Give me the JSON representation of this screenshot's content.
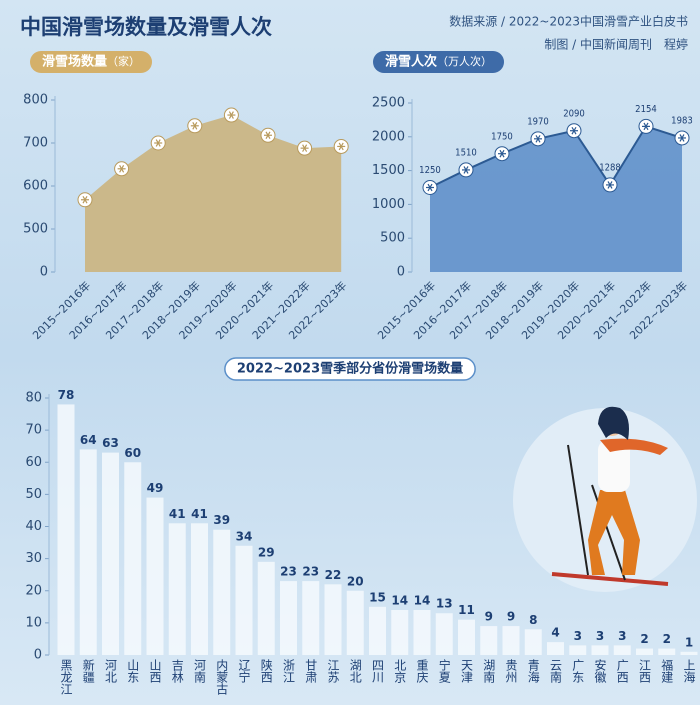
{
  "header": {
    "title": "中国滑雪场数量及滑雪人次",
    "source": "数据来源 / 2022~2023中国滑雪产业白皮书",
    "credit": "制图 / 中国新闻周刊　程婷"
  },
  "chart_data": [
    {
      "type": "area",
      "title": "滑雪场数量",
      "unit": "（家）",
      "categories": [
        "2015~2016年",
        "2016~2017年",
        "2017~2018年",
        "2018~2019年",
        "2019~2020年",
        "2020~2021年",
        "2021~2022年",
        "2022~2023年"
      ],
      "values": [
        568,
        640,
        700,
        740,
        765,
        718,
        688,
        692
      ],
      "color": "#cbb47e",
      "ylim": [
        0,
        800
      ],
      "yticks": [
        0,
        500,
        600,
        700,
        800
      ],
      "y_break": true,
      "grid": false
    },
    {
      "type": "line",
      "title": "滑雪人次",
      "unit": "（万人次）",
      "categories": [
        "2015~2016年",
        "2016~2017年",
        "2017~2018年",
        "2018~2019年",
        "2019~2020年",
        "2020~2021年",
        "2021~2022年",
        "2022~2023年"
      ],
      "values": [
        1250,
        1510,
        1750,
        1970,
        2090,
        1288,
        2154,
        1983
      ],
      "color": "#2c5a93",
      "ylim": [
        0,
        2500
      ],
      "yticks": [
        0,
        500,
        1000,
        1500,
        2000,
        2500
      ],
      "grid": false
    },
    {
      "type": "bar",
      "title": "2022~2023雪季部分省份滑雪场数量",
      "categories": [
        "黑龙江",
        "新疆",
        "河北",
        "山东",
        "山西",
        "吉林",
        "河南",
        "内蒙古",
        "辽宁",
        "陕西",
        "浙江",
        "甘肃",
        "江苏",
        "湖北",
        "四川",
        "北京",
        "重庆",
        "宁夏",
        "天津",
        "湖南",
        "贵州",
        "青海",
        "云南",
        "广东",
        "安徽",
        "广西",
        "江西",
        "福建",
        "上海"
      ],
      "values": [
        78,
        64,
        63,
        60,
        49,
        41,
        41,
        39,
        34,
        29,
        23,
        23,
        22,
        20,
        15,
        14,
        14,
        13,
        11,
        9,
        9,
        8,
        4,
        3,
        3,
        3,
        2,
        2,
        1
      ],
      "color": "#f4f9fd",
      "ylim": [
        0,
        80
      ],
      "yticks": [
        0,
        10,
        20,
        30,
        40,
        50,
        60,
        70,
        80
      ],
      "grid": false
    }
  ]
}
